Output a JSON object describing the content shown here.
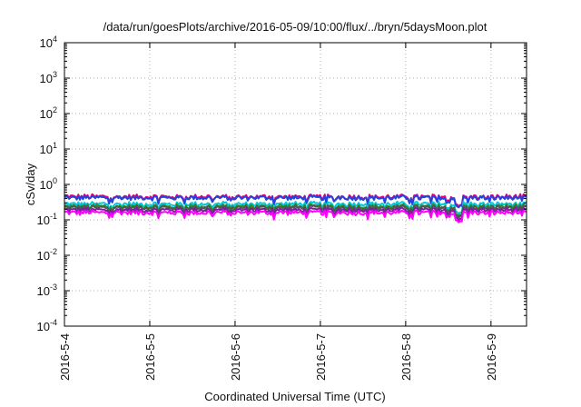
{
  "chart_data": {
    "type": "line",
    "title": "/data/run/goesPlots/archive/2016-05-09/10:00/flux/../bryn/5daysMoon.plot",
    "xlabel": "Coordinated Universal Time (UTC)",
    "ylabel": "cSv/day",
    "yscale": "log",
    "ylim": [
      0.0001,
      10000
    ],
    "xlim": [
      "2016-05-04",
      "2016-05-09 10:00"
    ],
    "grid": true,
    "x_ticks": [
      "2016-5-4",
      "2016-5-5",
      "2016-5-6",
      "2016-5-7",
      "2016-5-8",
      "2016-5-9"
    ],
    "y_ticks": [
      {
        "base": "10",
        "exp": "-4",
        "value": 0.0001
      },
      {
        "base": "10",
        "exp": "-3",
        "value": 0.001
      },
      {
        "base": "10",
        "exp": "-2",
        "value": 0.01
      },
      {
        "base": "10",
        "exp": "-1",
        "value": 0.1
      },
      {
        "base": "10",
        "exp": "0",
        "value": 1
      },
      {
        "base": "10",
        "exp": "1",
        "value": 10
      },
      {
        "base": "10",
        "exp": "2",
        "value": 100
      },
      {
        "base": "10",
        "exp": "3",
        "value": 1000
      },
      {
        "base": "10",
        "exp": "4",
        "value": 10000
      }
    ],
    "series": [
      {
        "color": "#e0007f",
        "level": 0.45
      },
      {
        "color": "#2244dd",
        "level": 0.42
      },
      {
        "color": "#00c8d8",
        "level": 0.28
      },
      {
        "color": "#2a8a2a",
        "level": 0.24
      },
      {
        "color": "#555555",
        "level": 0.22
      },
      {
        "color": "#7a1fa0",
        "level": 0.19
      },
      {
        "color": "#ff00ff",
        "level": 0.16
      }
    ]
  }
}
